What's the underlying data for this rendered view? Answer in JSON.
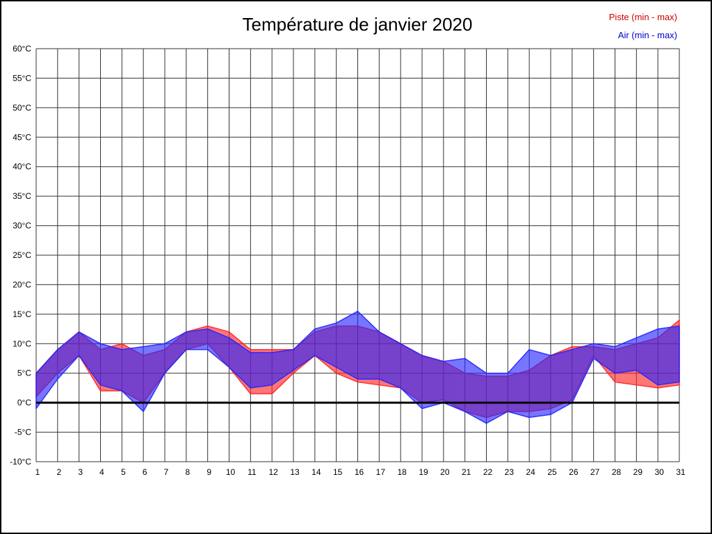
{
  "page": {
    "title": "Température de janvier 2020"
  },
  "legend": [
    {
      "label": "Piste (min - max)",
      "color": "#cc0000"
    },
    {
      "label": "Air (min - max)",
      "color": "#0000cc"
    }
  ],
  "chart_data": {
    "type": "area",
    "title": "Température de janvier 2020",
    "xlabel": "",
    "ylabel": "",
    "ylim": [
      -10,
      60
    ],
    "ytick_step": 5,
    "ytick_suffix": "°C",
    "grid": true,
    "zero_line": true,
    "legend_position": "top-right",
    "x": [
      1,
      2,
      3,
      4,
      5,
      6,
      7,
      8,
      9,
      10,
      11,
      12,
      13,
      14,
      15,
      16,
      17,
      18,
      19,
      20,
      21,
      22,
      23,
      24,
      25,
      26,
      27,
      28,
      29,
      30,
      31
    ],
    "series": [
      {
        "name": "Piste (min - max)",
        "key": "piste-band",
        "color": "#ff2222",
        "opacity": 0.62,
        "min": [
          1,
          5,
          8,
          2,
          2,
          0,
          5,
          9,
          10,
          6,
          1.5,
          1.5,
          5,
          8,
          5,
          3.5,
          3,
          2.5,
          0,
          0.5,
          -1.5,
          -2.5,
          -1.5,
          -1.5,
          -1,
          0.5,
          8,
          3.5,
          3,
          2.5,
          3
        ],
        "max": [
          5,
          9,
          12,
          9,
          10,
          8,
          9,
          12,
          13,
          12,
          9,
          9,
          9,
          12,
          13,
          13,
          12,
          10,
          8,
          7,
          5,
          4.5,
          4.5,
          5.5,
          8,
          9.5,
          9.5,
          9,
          10,
          11,
          14
        ]
      },
      {
        "name": "Air (min - max)",
        "key": "air-band",
        "color": "#2222ff",
        "opacity": 0.62,
        "min": [
          -1,
          4,
          8,
          3,
          2,
          -1.5,
          5,
          9,
          9,
          6,
          2.5,
          3,
          5.5,
          8,
          6,
          4,
          4,
          2.5,
          -1,
          0,
          -1.5,
          -3.5,
          -1.5,
          -2.5,
          -2,
          0,
          7.5,
          5,
          5.5,
          3,
          3.5
        ],
        "max": [
          5,
          9,
          12,
          10,
          9,
          9.5,
          10,
          12,
          12.5,
          11,
          8.5,
          8.5,
          9,
          12.5,
          13.5,
          15.5,
          12,
          10,
          8,
          7,
          7.5,
          5,
          5,
          9,
          8,
          9,
          10,
          9.5,
          11,
          12.5,
          13
        ]
      }
    ]
  }
}
